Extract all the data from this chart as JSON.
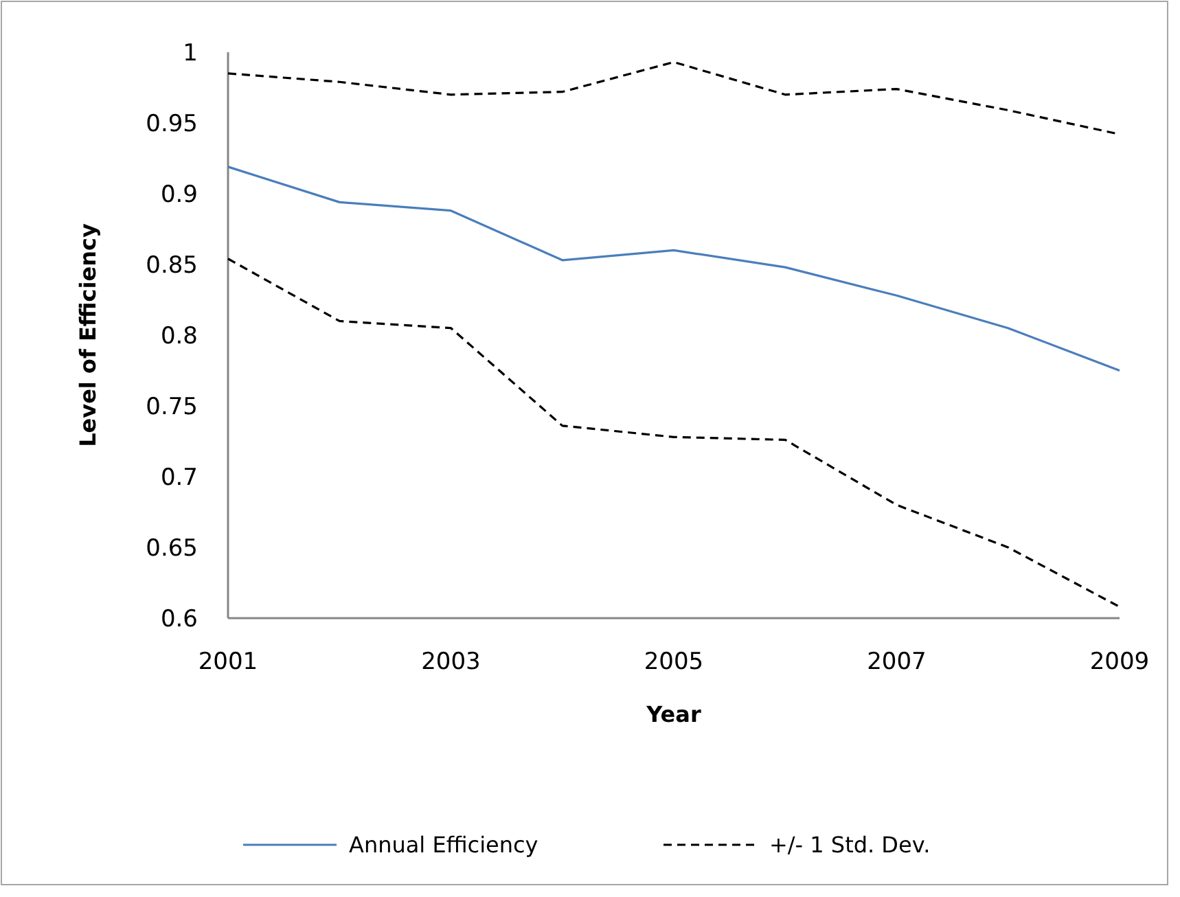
{
  "chart_data": {
    "type": "line",
    "xlabel": "Year",
    "ylabel": "Level of Efficiency",
    "x": [
      2001,
      2002,
      2003,
      2004,
      2005,
      2006,
      2007,
      2008,
      2009
    ],
    "xlim": [
      2001,
      2009
    ],
    "xticks": [
      2001,
      2003,
      2005,
      2007,
      2009
    ],
    "ylim": [
      0.6,
      1
    ],
    "yticks": [
      0.6,
      0.65,
      0.7,
      0.75,
      0.8,
      0.85,
      0.9,
      0.95,
      1
    ],
    "grid": false,
    "legend": "bottom",
    "marker": "none",
    "series": [
      {
        "name": "Annual Efficiency",
        "color": "#4a7ebb",
        "line_style": "solid",
        "values": [
          0.919,
          0.894,
          0.888,
          0.853,
          0.86,
          0.848,
          0.828,
          0.805,
          0.775
        ]
      },
      {
        "name": "+/- 1 Std. Dev.",
        "color": "#000000",
        "line_style": "dashed",
        "values": [
          0.985,
          0.979,
          0.97,
          0.972,
          0.993,
          0.97,
          0.974,
          0.959,
          0.942
        ]
      },
      {
        "color": "#000000",
        "line_style": "dashed",
        "values": [
          0.854,
          0.81,
          0.805,
          0.736,
          0.728,
          0.726,
          0.68,
          0.65,
          0.608
        ]
      }
    ]
  }
}
